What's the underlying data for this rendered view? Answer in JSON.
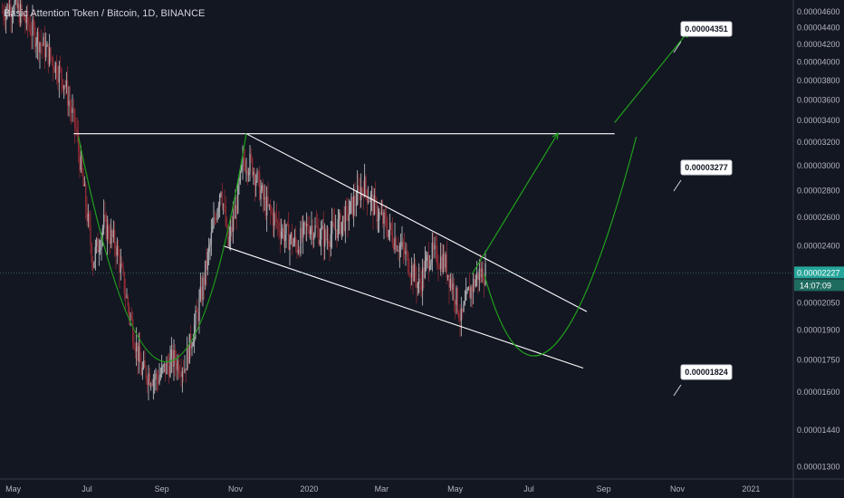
{
  "chart_data": {
    "type": "candlestick",
    "title": "Basic Attention Token / Bitcoin, 1D, BINANCE",
    "x_ticks": [
      "May",
      "Jul",
      "Sep",
      "Nov",
      "2020",
      "Mar",
      "May",
      "Jul",
      "Sep",
      "Nov",
      "2021"
    ],
    "y_ticks": [
      "0.00004600",
      "0.00004400",
      "0.00004200",
      "0.00004000",
      "0.00003800",
      "0.00003600",
      "0.00003400",
      "0.00003200",
      "0.00003000",
      "0.00002800",
      "0.00002600",
      "0.00002400",
      "0.00002050",
      "0.00001900",
      "0.00001750",
      "0.00001600",
      "0.00001440",
      "0.00001300"
    ],
    "y_scale": "log",
    "ylim": [
      1.26e-05,
      4.75e-05
    ],
    "x_range": [
      "2019-04-20",
      "2021-02-05"
    ],
    "current_price": {
      "label": "0.00002227",
      "value": 2.227e-05
    },
    "countdown": "14:07:09",
    "annotations": [
      {
        "text": "0.00004351",
        "value": 4.351e-05
      },
      {
        "text": "0.00003277",
        "value": 3.277e-05
      },
      {
        "text": "0.00001824",
        "value": 1.824e-05
      }
    ],
    "drawings": {
      "resistance": {
        "value": 3.277e-05,
        "from": "2019-06-20",
        "to": "2020-09-10"
      },
      "wedge_upper": [
        [
          "2019-11-10",
          3.277e-05
        ],
        [
          "2020-08-18",
          2e-05
        ]
      ],
      "wedge_lower": [
        [
          "2019-10-22",
          2.4e-05
        ],
        [
          "2020-08-15",
          1.71e-05
        ]
      ],
      "cup_curve": [
        [
          "2019-06-24",
          3.25e-05
        ],
        [
          "2019-09-05",
          1.74e-05
        ],
        [
          "2019-11-10",
          3.28e-05
        ]
      ],
      "projected_curve": [
        [
          "2020-05-25",
          2.22e-05
        ],
        [
          "2020-07-20",
          1.81e-05
        ],
        [
          "2020-09-28",
          3.25e-05
        ]
      ],
      "arrows": [
        [
          [
            "2020-05-15",
            2.22e-05
          ],
          [
            "2020-07-25",
            3.28e-05
          ]
        ],
        [
          [
            "2020-09-10",
            3.38e-05
          ],
          [
            "2020-11-10",
            4.351e-05
          ]
        ]
      ]
    },
    "ohlc_anchors": [
      [
        "2019-04-22",
        4.6e-05
      ],
      [
        "2019-05-01",
        4.7e-05
      ],
      [
        "2019-05-15",
        4.4e-05
      ],
      [
        "2019-06-01",
        4.05e-05
      ],
      [
        "2019-06-12",
        3.8e-05
      ],
      [
        "2019-06-22",
        3.3e-05
      ],
      [
        "2019-07-01",
        2.62e-05
      ],
      [
        "2019-07-06",
        2.3e-05
      ],
      [
        "2019-07-15",
        2.55e-05
      ],
      [
        "2019-07-25",
        2.4e-05
      ],
      [
        "2019-08-05",
        2e-05
      ],
      [
        "2019-08-15",
        1.7e-05
      ],
      [
        "2019-08-28",
        1.66e-05
      ],
      [
        "2019-09-10",
        1.75e-05
      ],
      [
        "2019-09-20",
        1.72e-05
      ],
      [
        "2019-10-01",
        2e-05
      ],
      [
        "2019-10-12",
        2.45e-05
      ],
      [
        "2019-10-20",
        2.85e-05
      ],
      [
        "2019-10-26",
        2.4e-05
      ],
      [
        "2019-11-01",
        2.65e-05
      ],
      [
        "2019-11-08",
        3.05e-05
      ],
      [
        "2019-11-15",
        3e-05
      ],
      [
        "2019-11-25",
        2.7e-05
      ],
      [
        "2019-12-10",
        2.5e-05
      ],
      [
        "2019-12-22",
        2.4e-05
      ],
      [
        "2020-01-01",
        2.55e-05
      ],
      [
        "2020-01-15",
        2.45e-05
      ],
      [
        "2020-02-01",
        2.6e-05
      ],
      [
        "2020-02-15",
        2.85e-05
      ],
      [
        "2020-02-25",
        2.65e-05
      ],
      [
        "2020-03-08",
        2.5e-05
      ],
      [
        "2020-03-20",
        2.35e-05
      ],
      [
        "2020-04-01",
        2.15e-05
      ],
      [
        "2020-04-10",
        2.35e-05
      ],
      [
        "2020-04-22",
        2.3e-05
      ],
      [
        "2020-05-01",
        2.1e-05
      ],
      [
        "2020-05-06",
        1.95e-05
      ],
      [
        "2020-05-12",
        2.1e-05
      ],
      [
        "2020-05-20",
        2.22e-05
      ],
      [
        "2020-05-26",
        2.23e-05
      ]
    ]
  },
  "colors": {
    "background": "#131722",
    "candle_up": "#a5a8ae",
    "candle_down": "#8e2a32",
    "wick": "#c8c8c8",
    "white_lines": "#ffffff",
    "green_lines": "#1fa21a",
    "price_tag": "#26a69a",
    "axis_text": "#b2b5be"
  }
}
